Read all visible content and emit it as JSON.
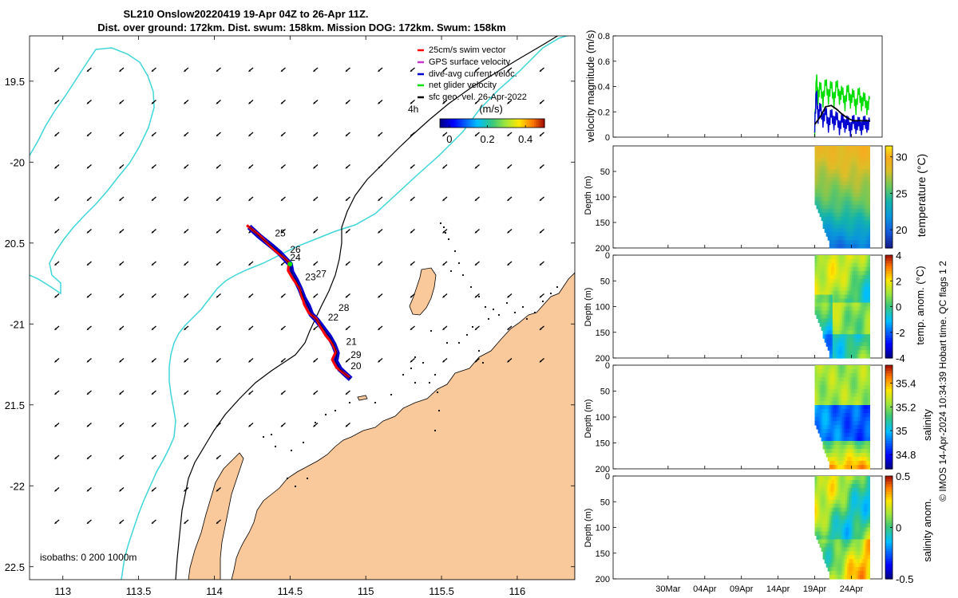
{
  "title": {
    "line1": "SL210 Onslow20220419 19-Apr 04Z to 26-Apr 11Z.",
    "line2": "Dist. over ground: 172km. Dist. swum: 158km. Mission DOG: 172km. Swum: 158km"
  },
  "credit": "© IMOS 14-Apr-2024 10:34:39 Hobart time. QC flags 1  2",
  "colors": {
    "land": "#f9c89b",
    "coastline": "#000000",
    "isobath200": "#3fd6d9",
    "isobath1000": "#000000",
    "track_red": "#ff0000",
    "track_blue": "#0000d0",
    "net_green": "#00dd00",
    "magenta": "#cc33cc",
    "sfc_arrow": "#000000"
  },
  "map": {
    "lon_ticks": [
      "113",
      "113.5",
      "114",
      "114.5",
      "115",
      "115.5",
      "116"
    ],
    "lat_ticks": [
      "19.5",
      "-20",
      "20.5",
      "-21",
      "21.5",
      "-22",
      "22.5"
    ],
    "lon_range": [
      112.78,
      116.38
    ],
    "lat_range": [
      -22.58,
      -19.22
    ],
    "legend": {
      "items": [
        {
          "label": "25cm/s swim vector",
          "color": "#ff0000"
        },
        {
          "label": "GPS surface velocity",
          "color": "#cc33cc"
        },
        {
          "label": "dive-avg current veloc.",
          "color": "#0000d0"
        },
        {
          "label": "net glider velocity",
          "color": "#00dd00"
        },
        {
          "label": "sfc geo. vel. 26-Apr-2022",
          "color": "#000000"
        }
      ],
      "hour_label": "4h",
      "colorbar_title": "(m/s)",
      "colorbar_ticks": [
        "0",
        "0.2",
        "0.4"
      ],
      "colorbar_values": [
        0,
        0.2,
        0.4
      ],
      "colorbar_range": [
        -0.05,
        0.5
      ]
    },
    "isobath_label": "isobaths: 0   200  1000m",
    "day_labels": [
      {
        "text": "25",
        "lon": 114.4,
        "lat": -20.44
      },
      {
        "text": "26",
        "lon": 114.5,
        "lat": -20.54
      },
      {
        "text": "24",
        "lon": 114.5,
        "lat": -20.59
      },
      {
        "text": "27",
        "lon": 114.67,
        "lat": -20.69
      },
      {
        "text": "23",
        "lon": 114.6,
        "lat": -20.71
      },
      {
        "text": "28",
        "lon": 114.82,
        "lat": -20.9
      },
      {
        "text": "22",
        "lon": 114.75,
        "lat": -20.96
      },
      {
        "text": "21",
        "lon": 114.87,
        "lat": -21.11
      },
      {
        "text": "29",
        "lon": 114.9,
        "lat": -21.19
      },
      {
        "text": "20",
        "lon": 114.9,
        "lat": -21.26
      }
    ],
    "track": [
      [
        114.23,
        -20.4
      ],
      [
        114.3,
        -20.46
      ],
      [
        114.38,
        -20.52
      ],
      [
        114.43,
        -20.56
      ],
      [
        114.47,
        -20.6
      ],
      [
        114.5,
        -20.63
      ],
      [
        114.51,
        -20.68
      ],
      [
        114.54,
        -20.73
      ],
      [
        114.57,
        -20.79
      ],
      [
        114.59,
        -20.84
      ],
      [
        114.62,
        -20.89
      ],
      [
        114.64,
        -20.94
      ],
      [
        114.68,
        -20.98
      ],
      [
        114.72,
        -21.03
      ],
      [
        114.76,
        -21.08
      ],
      [
        114.79,
        -21.13
      ],
      [
        114.81,
        -21.18
      ],
      [
        114.8,
        -21.23
      ],
      [
        114.83,
        -21.28
      ],
      [
        114.9,
        -21.34
      ]
    ]
  },
  "chart_data": [
    {
      "type": "line",
      "name": "velocity",
      "ylabel": "velocity magnitude (m/s)",
      "ylim": [
        0,
        0.8
      ],
      "yticks": [
        "0",
        "0.2",
        "0.4",
        "0.6",
        "0.8"
      ],
      "xrange_days": [
        0,
        61
      ],
      "series": [
        {
          "name": "net glider velocity",
          "color": "#00dd00",
          "x": [
            50.0,
            50.3,
            50.6,
            51.0,
            51.5,
            52.0,
            52.5,
            53.0,
            53.5,
            54.0,
            54.5,
            55.0,
            55.5,
            56.0,
            56.5,
            57.0,
            57.5,
            58.0,
            58.5,
            59.0,
            59.5,
            60.0
          ],
          "y": [
            0.05,
            0.5,
            0.3,
            0.42,
            0.28,
            0.45,
            0.3,
            0.43,
            0.27,
            0.44,
            0.3,
            0.38,
            0.25,
            0.4,
            0.27,
            0.36,
            0.22,
            0.38,
            0.25,
            0.33,
            0.22,
            0.3
          ]
        },
        {
          "name": "dive-avg current",
          "color": "#0000d0",
          "x": [
            50.0,
            50.3,
            50.6,
            51.0,
            51.5,
            52.0,
            52.5,
            53.0,
            53.5,
            54.0,
            54.5,
            55.0,
            55.5,
            56.0,
            56.5,
            57.0,
            57.5,
            58.0,
            58.5,
            59.0,
            59.5,
            60.0
          ],
          "y": [
            0.08,
            0.38,
            0.15,
            0.25,
            0.12,
            0.22,
            0.08,
            0.2,
            0.1,
            0.18,
            0.06,
            0.16,
            0.08,
            0.14,
            0.05,
            0.15,
            0.07,
            0.13,
            0.06,
            0.14,
            0.08,
            0.12
          ]
        },
        {
          "name": "sfc geo. vel.",
          "color": "#000000",
          "x": [
            50.0,
            51.0,
            52.0,
            53.0,
            54.0,
            55.0,
            56.0,
            57.0,
            58.0,
            59.0,
            60.0
          ],
          "y": [
            0.1,
            0.16,
            0.24,
            0.25,
            0.22,
            0.18,
            0.15,
            0.13,
            0.13,
            0.13,
            0.13
          ]
        }
      ]
    },
    {
      "type": "heatmap",
      "name": "temperature",
      "ylabel": "Depth (m)",
      "ylim": [
        200,
        0
      ],
      "yticks": [
        "50",
        "100",
        "150",
        "200"
      ],
      "colorbar_label": "temperature (°C)",
      "clim": [
        17.5,
        31.5
      ],
      "colorbar_ticks": [
        "20",
        "25",
        "30"
      ],
      "colorbar_values": [
        20,
        25,
        30
      ],
      "cmap": "parula"
    },
    {
      "type": "heatmap",
      "name": "temp anomaly",
      "ylabel": "Depth (m)",
      "ylim": [
        200,
        0
      ],
      "yticks": [
        "0",
        "50",
        "100",
        "150",
        "200"
      ],
      "colorbar_label": "temp. anom. (°C)",
      "clim": [
        -4,
        4
      ],
      "colorbar_ticks": [
        "4",
        "2",
        "0",
        "-2",
        "-4"
      ],
      "colorbar_values": [
        4,
        2,
        0,
        -2,
        -4
      ],
      "cmap": "jet"
    },
    {
      "type": "heatmap",
      "name": "salinity",
      "ylabel": "Depth (m)",
      "ylim": [
        200,
        0
      ],
      "yticks": [
        "0",
        "50",
        "100",
        "150",
        "200"
      ],
      "colorbar_label": "salinity",
      "clim": [
        34.68,
        35.55
      ],
      "colorbar_ticks": [
        "35.4",
        "35.2",
        "35",
        "34.8"
      ],
      "colorbar_values": [
        35.4,
        35.2,
        35.0,
        34.8
      ],
      "cmap": "jet"
    },
    {
      "type": "heatmap",
      "name": "salinity anomaly",
      "ylabel": "Depth (m)",
      "ylim": [
        200,
        0
      ],
      "yticks": [
        "0",
        "50",
        "100",
        "150",
        "200"
      ],
      "colorbar_label": "salinity anom.",
      "clim": [
        -0.5,
        0.5
      ],
      "colorbar_ticks": [
        "0.5",
        "0",
        "-0.5"
      ],
      "colorbar_values": [
        0.5,
        0,
        -0.5
      ],
      "cmap": "jet"
    }
  ],
  "time_axis": {
    "labels": [
      "30Mar",
      "04Apr",
      "09Apr",
      "14Apr",
      "19Apr",
      "24Apr"
    ],
    "days": [
      11,
      16,
      21,
      26,
      31,
      36
    ],
    "xlim_days": [
      3.5,
      40.2
    ],
    "data_start_day": 31,
    "data_end_day": 38.5
  }
}
